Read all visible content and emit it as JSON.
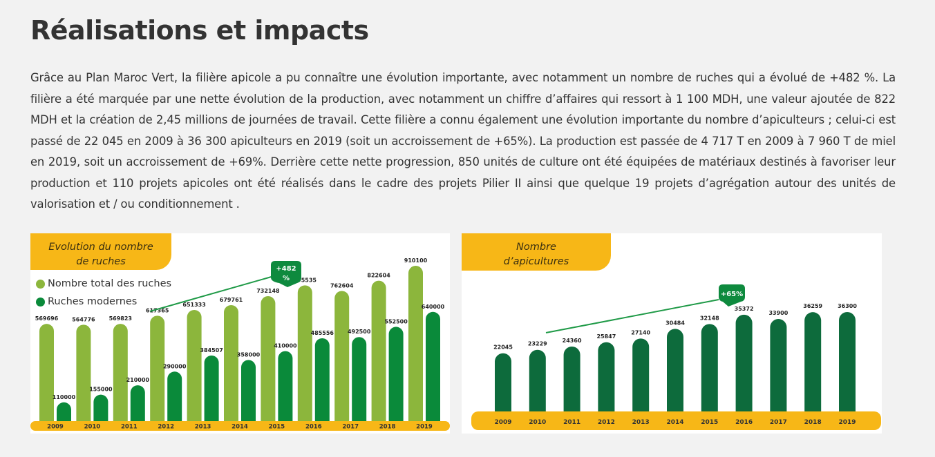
{
  "page": {
    "title": "Réalisations et impacts",
    "paragraph": "Grâce au Plan Maroc Vert, la filière apicole a pu connaître une évolution importante, avec notamment un nombre de ruches qui a évolué de +482 %. La filière a été marquée par une nette évolution de la production, avec notamment un chiffre d’affaires qui ressort à 1 100 MDH, une valeur ajoutée de 822 MDH et la création de 2,45 millions de journées de travail. Cette filière a connu également une évolution importante du nombre d’apiculteurs ; celui-ci est passé de 22 045 en 2009 à 36 300 apiculteurs en 2019 (soit un accroissement de +65%). La production est passée de 4 717 T en 2009 à 7 960 T de miel en 2019, soit un accroissement de +69%. Derrière cette nette progression, 850 unités de culture ont été équipées de matériaux destinés à favoriser leur production et 110 projets apicoles ont été réalisés dans le cadre des projets Pilier II ainsi que quelque 19 projets d’agrégation autour des unités de valorisation et / ou conditionnement ."
  },
  "colors": {
    "light_green": "#8cb63c",
    "dark_green": "#0a8a3a",
    "darker_green": "#0d6b3c",
    "yellow": "#f7b717",
    "badge_green": "#0e8a3e"
  },
  "chart_data": [
    {
      "type": "bar",
      "title_line1": "Evolution du nombre",
      "title_line2": "de ruches",
      "categories": [
        "2009",
        "2010",
        "2011",
        "2012",
        "2013",
        "2014",
        "2015",
        "2016",
        "2017",
        "2018",
        "2019"
      ],
      "series": [
        {
          "name": "Nombre total des ruches",
          "values": [
            569696,
            564776,
            569823,
            617365,
            651333,
            679761,
            732148,
            795535,
            762604,
            822604,
            910100
          ]
        },
        {
          "name": "Ruches modernes",
          "values": [
            110000,
            155000,
            210000,
            290000,
            384507,
            358000,
            410000,
            485556,
            492500,
            552500,
            640000
          ]
        }
      ],
      "badge_line1": "+482",
      "badge_line2": "%",
      "legend_position": "top-left",
      "ylim": [
        0,
        910100
      ]
    },
    {
      "type": "bar",
      "title_line1": "Nombre",
      "title_line2": "d’apicultures",
      "categories": [
        "2009",
        "2010",
        "2011",
        "2012",
        "2013",
        "2014",
        "2015",
        "2016",
        "2017",
        "2018",
        "2019"
      ],
      "series": [
        {
          "values": [
            22045,
            23229,
            24360,
            25847,
            27140,
            30484,
            32148,
            35372,
            33900,
            36259,
            36300
          ]
        }
      ],
      "badge_line1": "+65%",
      "ylim": [
        0,
        36300
      ]
    }
  ]
}
